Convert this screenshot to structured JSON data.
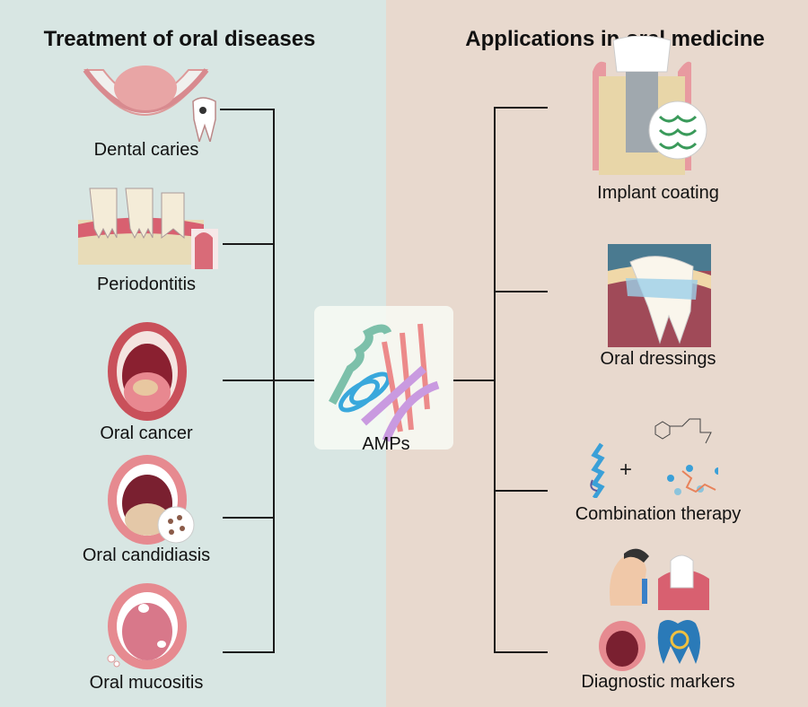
{
  "left_panel": {
    "title": "Treatment of oral diseases",
    "items": [
      {
        "label": "Dental caries",
        "icon": "dental-caries-illustration"
      },
      {
        "label": "Periodontitis",
        "icon": "periodontitis-illustration"
      },
      {
        "label": "Oral cancer",
        "icon": "oral-cancer-illustration"
      },
      {
        "label": "Oral candidiasis",
        "icon": "oral-candidiasis-illustration"
      },
      {
        "label": "Oral mucositis",
        "icon": "oral-mucositis-illustration"
      }
    ]
  },
  "center": {
    "label": "AMPs",
    "icon": "peptide-structure-illustration"
  },
  "right_panel": {
    "title": "Applications in oral medicine",
    "items": [
      {
        "label": "Implant coating",
        "icon": "implant-illustration"
      },
      {
        "label": "Oral dressings",
        "icon": "tooth-dressing-illustration"
      },
      {
        "label": "Combination therapy",
        "icon": "peptide-plus-drug-illustration"
      },
      {
        "label": "Diagnostic markers",
        "icon": "diagnostic-illustration"
      }
    ]
  },
  "colors": {
    "left_bg": "#d8e6e3",
    "right_bg": "#e8d9ce",
    "lines": "#1a1a1a"
  }
}
